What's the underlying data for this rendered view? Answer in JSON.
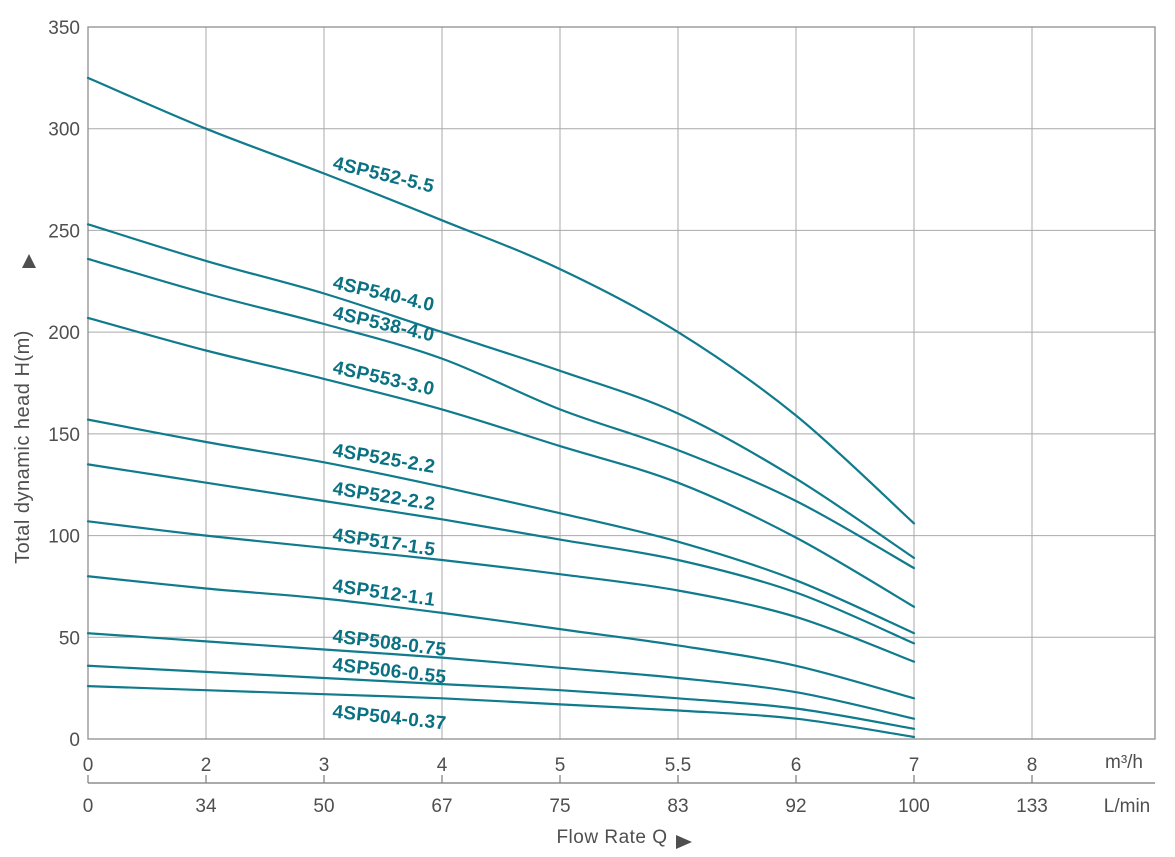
{
  "chart_data": {
    "type": "line",
    "xlabel": "Flow Rate Q",
    "ylabel": "Total dynamic head H(m)",
    "grid": true,
    "x_axis_primary": {
      "unit": "m³/h",
      "tick_labels": [
        "0",
        "2",
        "3",
        "4",
        "5",
        "5.5",
        "6",
        "7",
        "8"
      ]
    },
    "x_axis_secondary": {
      "unit": "L/min",
      "tick_labels": [
        "0",
        "34",
        "50",
        "67",
        "75",
        "83",
        "92",
        "100",
        "133"
      ]
    },
    "y_axis": {
      "min": 0,
      "max": 350,
      "step": 50,
      "tick_labels": [
        "0",
        "50",
        "100",
        "150",
        "200",
        "250",
        "300",
        "350"
      ]
    },
    "legend_position": "inline-curve-labels",
    "series": [
      {
        "name": "4SP552-5.5",
        "x": [
          0,
          2,
          3,
          4,
          5,
          5.5,
          6,
          7
        ],
        "values": [
          325,
          300,
          278,
          255,
          231,
          200,
          159,
          106
        ]
      },
      {
        "name": "4SP540-4.0",
        "x": [
          0,
          2,
          3,
          4,
          5,
          5.5,
          6,
          7
        ],
        "values": [
          253,
          235,
          219,
          200,
          181,
          160,
          128,
          89
        ]
      },
      {
        "name": "4SP538-4.0",
        "x": [
          0,
          2,
          3,
          4,
          5,
          5.5,
          6,
          7
        ],
        "values": [
          236,
          219,
          204,
          187,
          162,
          142,
          117,
          84
        ]
      },
      {
        "name": "4SP553-3.0",
        "x": [
          0,
          2,
          3,
          4,
          5,
          5.5,
          6,
          7
        ],
        "values": [
          207,
          191,
          177,
          162,
          144,
          126,
          99,
          65
        ]
      },
      {
        "name": "4SP525-2.2",
        "x": [
          0,
          2,
          3,
          4,
          5,
          5.5,
          6,
          7
        ],
        "values": [
          157,
          146,
          136,
          124,
          111,
          97,
          78,
          52
        ]
      },
      {
        "name": "4SP522-2.2",
        "x": [
          0,
          2,
          3,
          4,
          5,
          5.5,
          6,
          7
        ],
        "values": [
          135,
          126,
          117,
          108,
          98,
          88,
          72,
          47
        ]
      },
      {
        "name": "4SP517-1.5",
        "x": [
          0,
          2,
          3,
          4,
          5,
          5.5,
          6,
          7
        ],
        "values": [
          107,
          100,
          94,
          88,
          81,
          73,
          60,
          38
        ]
      },
      {
        "name": "4SP512-1.1",
        "x": [
          0,
          2,
          3,
          4,
          5,
          5.5,
          6,
          7
        ],
        "values": [
          80,
          74,
          69,
          62,
          54,
          46,
          36,
          20
        ]
      },
      {
        "name": "4SP508-0.75",
        "x": [
          0,
          2,
          3,
          4,
          5,
          5.5,
          6,
          7
        ],
        "values": [
          52,
          48,
          44,
          40,
          35,
          30,
          23,
          10
        ]
      },
      {
        "name": "4SP506-0.55",
        "x": [
          0,
          2,
          3,
          4,
          5,
          5.5,
          6,
          7
        ],
        "values": [
          36,
          33,
          30,
          27,
          24,
          20,
          15,
          5
        ]
      },
      {
        "name": "4SP504-0.37",
        "x": [
          0,
          2,
          3,
          4,
          5,
          5.5,
          6,
          7
        ],
        "values": [
          26,
          24,
          22,
          20,
          17,
          14,
          10,
          1
        ]
      }
    ]
  },
  "colors": {
    "curve": "#0f7b8c",
    "curve_label": "#0a7183",
    "grid": "#a9a9a9",
    "axis": "#8e8e8e",
    "text": "#4f4f4f",
    "background": "#ffffff"
  }
}
